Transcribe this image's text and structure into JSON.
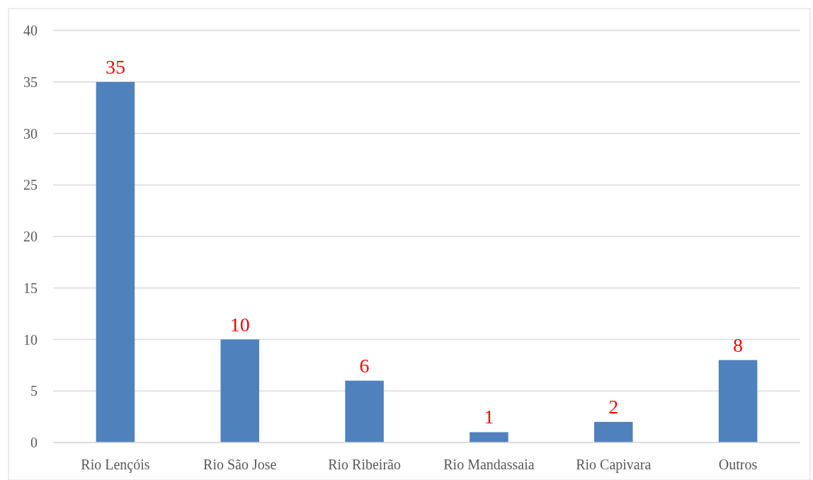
{
  "chart_data": {
    "type": "bar",
    "categories": [
      "Rio Lençóis",
      "Rio São Jose",
      "Rio Ribeirão",
      "Rio Mandassaia",
      "Rio Capivara",
      "Outros"
    ],
    "values": [
      35,
      10,
      6,
      1,
      2,
      8
    ],
    "color": "#4f81bd",
    "ylim": [
      0,
      40
    ],
    "yticks": [
      0,
      5,
      10,
      15,
      20,
      25,
      30,
      35,
      40
    ],
    "grid": "y",
    "data_labels": true
  }
}
